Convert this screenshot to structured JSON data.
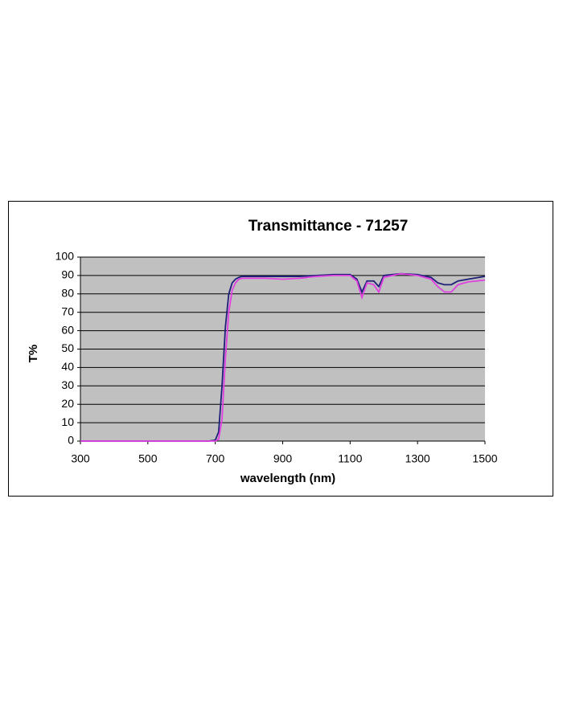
{
  "chart_data": {
    "type": "line",
    "title": "Transmittance - 71257",
    "x_label": "wavelength (nm)",
    "y_label": "T%",
    "x": [
      300,
      400,
      500,
      600,
      680,
      700,
      710,
      720,
      730,
      740,
      750,
      760,
      770,
      780,
      800,
      850,
      900,
      950,
      1000,
      1050,
      1100,
      1120,
      1135,
      1150,
      1170,
      1185,
      1200,
      1250,
      1300,
      1340,
      1360,
      1380,
      1400,
      1420,
      1450,
      1500
    ],
    "series": [
      {
        "color": "#1f1f7a",
        "values": [
          0,
          0,
          0,
          0,
          0,
          0.5,
          5,
          30,
          62,
          80,
          86,
          88,
          89,
          89.5,
          89.5,
          89.5,
          89.5,
          89.5,
          90,
          90.5,
          90.5,
          88,
          81,
          87,
          87,
          84,
          90,
          91,
          90.5,
          89,
          86,
          85,
          85,
          87,
          88,
          89.5
        ]
      },
      {
        "color": "#e040e0",
        "values": [
          0,
          0,
          0,
          0,
          0,
          0,
          1,
          12,
          45,
          70,
          82,
          86,
          88,
          88.5,
          88.5,
          88.5,
          88,
          88.5,
          89.5,
          90,
          90,
          87,
          78,
          86,
          85,
          81,
          89,
          91,
          90,
          88,
          84,
          81,
          81,
          85,
          86.5,
          87.5
        ]
      }
    ],
    "xlim": [
      300,
      1500
    ],
    "xticks": [
      300,
      500,
      700,
      900,
      1100,
      1300,
      1500
    ],
    "ylim": [
      0,
      100
    ],
    "yticks": [
      0,
      10,
      20,
      30,
      40,
      50,
      60,
      70,
      80,
      90,
      100
    ],
    "grid": true,
    "plot_background": "#c0c0c0"
  }
}
